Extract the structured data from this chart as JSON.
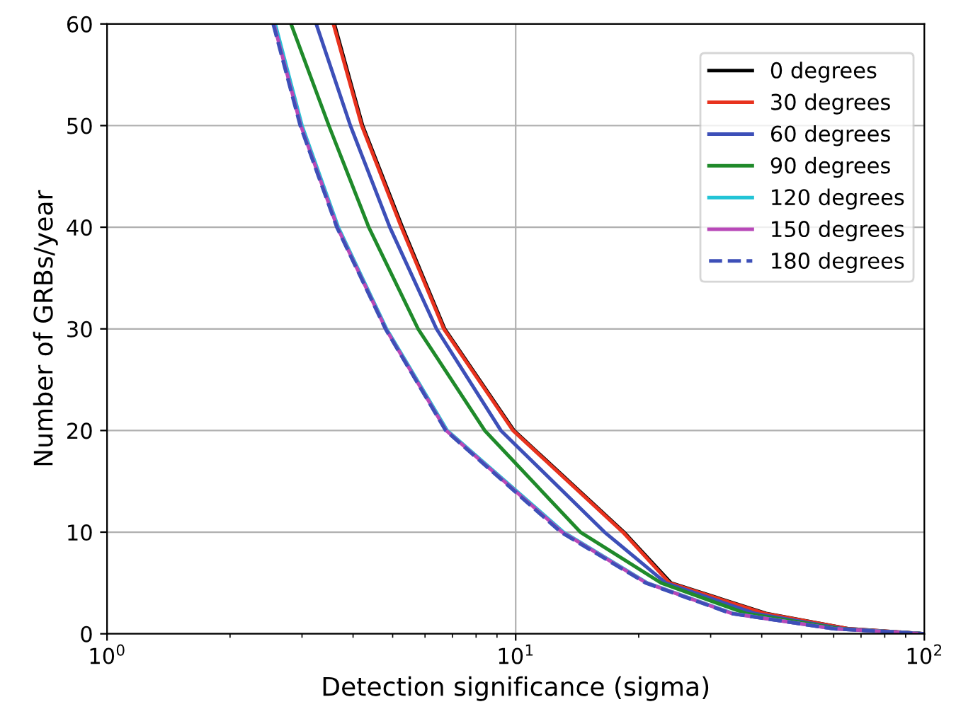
{
  "chart_data": {
    "type": "line",
    "xlabel": "Detection significance (sigma)",
    "ylabel": "Number of GRBs/year",
    "log": "x",
    "xlim": [
      1,
      100
    ],
    "xticks": [
      {
        "value": 1,
        "label": "10$^{0}$"
      },
      {
        "value": 10,
        "label": "10$^{1}$"
      },
      {
        "value": 100,
        "label": "10$^{2}$"
      }
    ],
    "ylim": [
      0,
      60
    ],
    "yticks": [
      0,
      10,
      20,
      30,
      40,
      50,
      60
    ],
    "grid": true,
    "legend": "top right",
    "line_style": "solid",
    "marker": "none",
    "series": [
      {
        "name": "0 degrees",
        "color": "#000000",
        "x": [
          3.6,
          4.22,
          5.28,
          6.7,
          9.9,
          18.4,
          24,
          41,
          65,
          100
        ],
        "values": [
          60,
          50,
          40,
          30,
          20,
          10,
          5,
          2,
          0.5,
          0
        ]
      },
      {
        "name": "30 degrees",
        "color": "#e8321e",
        "x": [
          3.58,
          4.2,
          5.25,
          6.67,
          9.85,
          18.3,
          23.8,
          40.6,
          65,
          100
        ],
        "values": [
          60,
          50,
          40,
          30,
          20,
          10,
          5,
          2,
          0.5,
          0
        ]
      },
      {
        "name": "60 degrees",
        "color": "#3d4fb8",
        "x": [
          3.25,
          3.94,
          4.92,
          6.4,
          9.2,
          16.5,
          23.3,
          38.5,
          63,
          100
        ],
        "values": [
          60,
          50,
          40,
          30,
          20,
          10,
          5,
          2,
          0.5,
          0
        ]
      },
      {
        "name": "90 degrees",
        "color": "#1f8a2a",
        "x": [
          2.82,
          3.49,
          4.37,
          5.77,
          8.4,
          14.4,
          22.7,
          36.6,
          62,
          100
        ],
        "values": [
          60,
          50,
          40,
          30,
          20,
          10,
          5,
          2,
          0.5,
          0
        ]
      },
      {
        "name": "120 degrees",
        "color": "#22c4d6",
        "x": [
          2.58,
          3.0,
          3.68,
          4.83,
          6.8,
          13.1,
          21,
          34,
          60,
          100
        ],
        "values": [
          60,
          50,
          40,
          30,
          20,
          10,
          5,
          2,
          0.5,
          0
        ]
      },
      {
        "name": "150 degrees",
        "color": "#b848b8",
        "x": [
          2.56,
          2.98,
          3.66,
          4.81,
          6.76,
          13.0,
          20.9,
          33.8,
          60,
          100
        ],
        "values": [
          60,
          50,
          40,
          30,
          20,
          10,
          5,
          2,
          0.5,
          0
        ]
      },
      {
        "name": "180 degrees",
        "color": "#3d4fb8",
        "line_style": "dashed",
        "x": [
          2.55,
          2.97,
          3.65,
          4.8,
          6.74,
          12.9,
          20.8,
          33.6,
          60,
          100
        ],
        "values": [
          60,
          50,
          40,
          30,
          20,
          10,
          5,
          2,
          0.5,
          0
        ]
      }
    ]
  }
}
